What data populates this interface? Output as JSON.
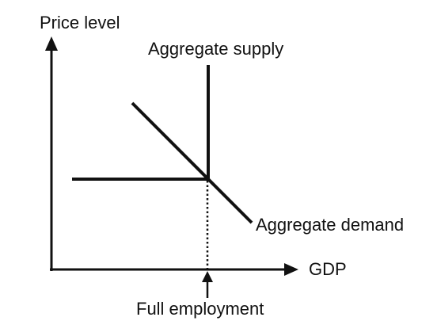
{
  "diagram": {
    "axes": {
      "y_label": "Price level",
      "x_label": "GDP"
    },
    "curves": {
      "supply_label": "Aggregate supply",
      "demand_label": "Aggregate demand"
    },
    "marker": {
      "label": "Full employment"
    },
    "colors": {
      "ink": "#111111",
      "background": "#ffffff"
    }
  }
}
